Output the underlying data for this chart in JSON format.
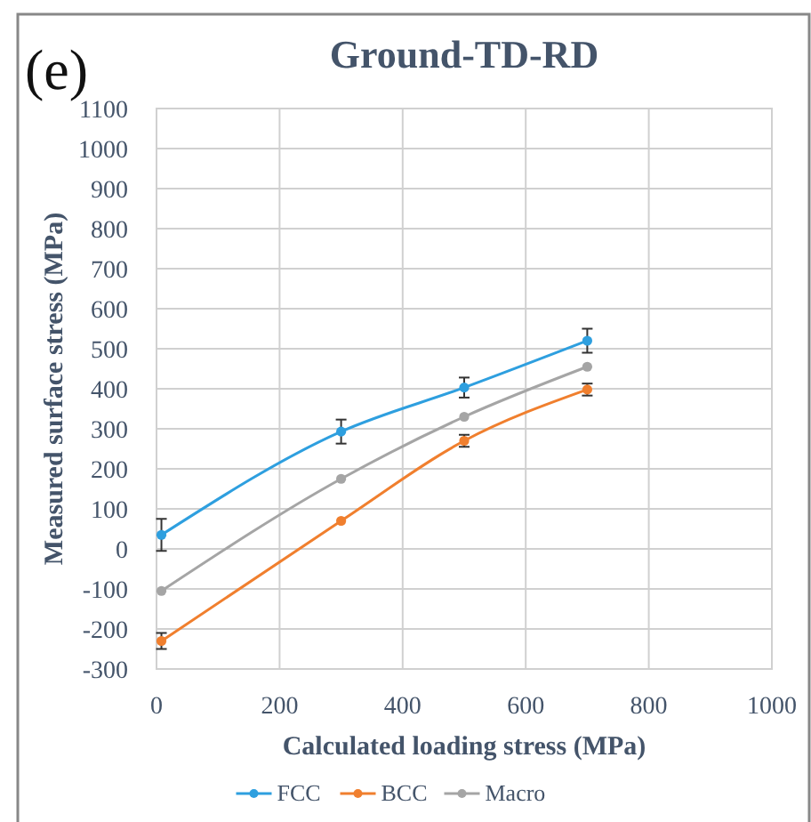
{
  "chart_data": {
    "type": "line",
    "title": "Ground-TD-RD",
    "xlabel": "Calculated loading stress (MPa)",
    "ylabel": "Measured surface stress (MPa)",
    "annotations": [
      "(e)"
    ],
    "x": [
      8,
      300,
      500,
      700
    ],
    "series": [
      {
        "name": "FCC",
        "color": "#2e9fdf",
        "values": [
          35,
          293,
          403,
          520
        ],
        "errors": [
          40,
          30,
          25,
          30
        ]
      },
      {
        "name": "BCC",
        "color": "#f07f2e",
        "values": [
          -230,
          70,
          270,
          398
        ],
        "errors": [
          20,
          null,
          15,
          15
        ]
      },
      {
        "name": "Macro",
        "color": "#a5a5a5",
        "values": [
          -105,
          175,
          330,
          455
        ]
      }
    ],
    "xlim": [
      0,
      1000
    ],
    "xticks": [
      0,
      200,
      400,
      600,
      800,
      1000
    ],
    "ylim": [
      -300,
      1100
    ],
    "yticks": [
      -300,
      -200,
      -100,
      0,
      100,
      200,
      300,
      400,
      500,
      600,
      700,
      800,
      900,
      1000,
      1100
    ],
    "grid": true,
    "legend": "bottom",
    "marker": "circle",
    "line_style": "solid"
  }
}
